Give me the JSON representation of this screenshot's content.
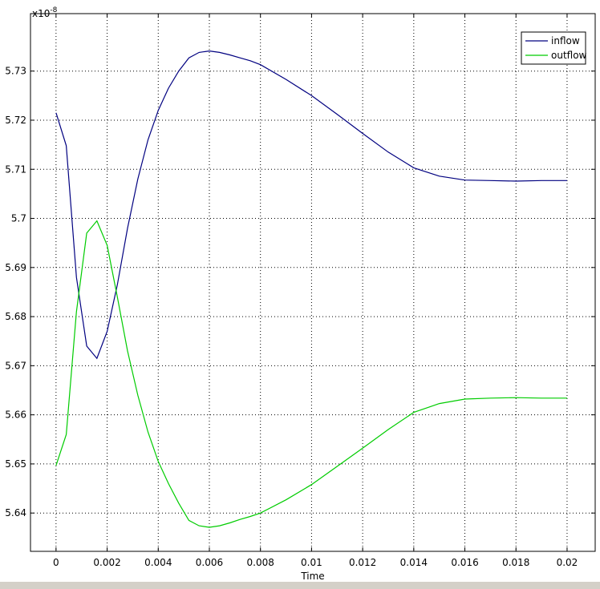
{
  "chart_data": {
    "type": "line",
    "xlabel": "Time",
    "ylabel": "",
    "exponent_base": "x10",
    "exponent_power": "-8",
    "xlim": [
      -0.001,
      0.0211
    ],
    "ylim": [
      5.6322,
      5.7417
    ],
    "xticks": [
      0,
      0.002,
      0.004,
      0.006,
      0.008,
      0.01,
      0.012,
      0.014,
      0.016,
      0.018,
      0.02
    ],
    "xtick_labels": [
      "0",
      "0.002",
      "0.004",
      "0.006",
      "0.008",
      "0.01",
      "0.012",
      "0.014",
      "0.016",
      "0.018",
      "0.02"
    ],
    "yticks": [
      5.64,
      5.65,
      5.66,
      5.67,
      5.68,
      5.69,
      5.7,
      5.71,
      5.72,
      5.73
    ],
    "ytick_labels": [
      "5.64",
      "5.65",
      "5.66",
      "5.67",
      "5.68",
      "5.69",
      "5.7",
      "5.71",
      "5.72",
      "5.73"
    ],
    "grid": true,
    "legend_position": "top-right",
    "series": [
      {
        "name": "inflow",
        "color": "#000080",
        "x": [
          0,
          0.0004,
          0.0008,
          0.0012,
          0.0016,
          0.002,
          0.0024,
          0.0028,
          0.0032,
          0.0036,
          0.004,
          0.0044,
          0.0048,
          0.0052,
          0.0056,
          0.006,
          0.0064,
          0.0068,
          0.0072,
          0.0076,
          0.008,
          0.009,
          0.01,
          0.011,
          0.012,
          0.013,
          0.014,
          0.015,
          0.016,
          0.017,
          0.018,
          0.019,
          0.02
        ],
        "y": [
          5.7215,
          5.7148,
          5.688,
          5.674,
          5.6715,
          5.677,
          5.6865,
          5.698,
          5.708,
          5.716,
          5.722,
          5.7265,
          5.73,
          5.7327,
          5.7338,
          5.7341,
          5.7338,
          5.7333,
          5.7327,
          5.7321,
          5.7313,
          5.7283,
          5.725,
          5.7212,
          5.7173,
          5.7135,
          5.7103,
          5.7086,
          5.7078,
          5.7077,
          5.7076,
          5.7077,
          5.7077
        ]
      },
      {
        "name": "outflow",
        "color": "#00cc00",
        "x": [
          0,
          0.0004,
          0.0008,
          0.0012,
          0.0016,
          0.002,
          0.0024,
          0.0028,
          0.0032,
          0.0036,
          0.004,
          0.0044,
          0.0048,
          0.0052,
          0.0056,
          0.006,
          0.0064,
          0.0068,
          0.0072,
          0.0076,
          0.008,
          0.009,
          0.01,
          0.011,
          0.012,
          0.013,
          0.014,
          0.015,
          0.016,
          0.017,
          0.018,
          0.019,
          0.02
        ],
        "y": [
          5.6497,
          5.656,
          5.681,
          5.697,
          5.6995,
          5.6945,
          5.684,
          5.673,
          5.664,
          5.6565,
          5.6505,
          5.646,
          5.642,
          5.6385,
          5.6374,
          5.6371,
          5.6374,
          5.638,
          5.6387,
          5.6393,
          5.64,
          5.6427,
          5.6458,
          5.6495,
          5.6532,
          5.657,
          5.6605,
          5.6623,
          5.6632,
          5.6634,
          5.6635,
          5.6634,
          5.6634
        ]
      }
    ]
  }
}
